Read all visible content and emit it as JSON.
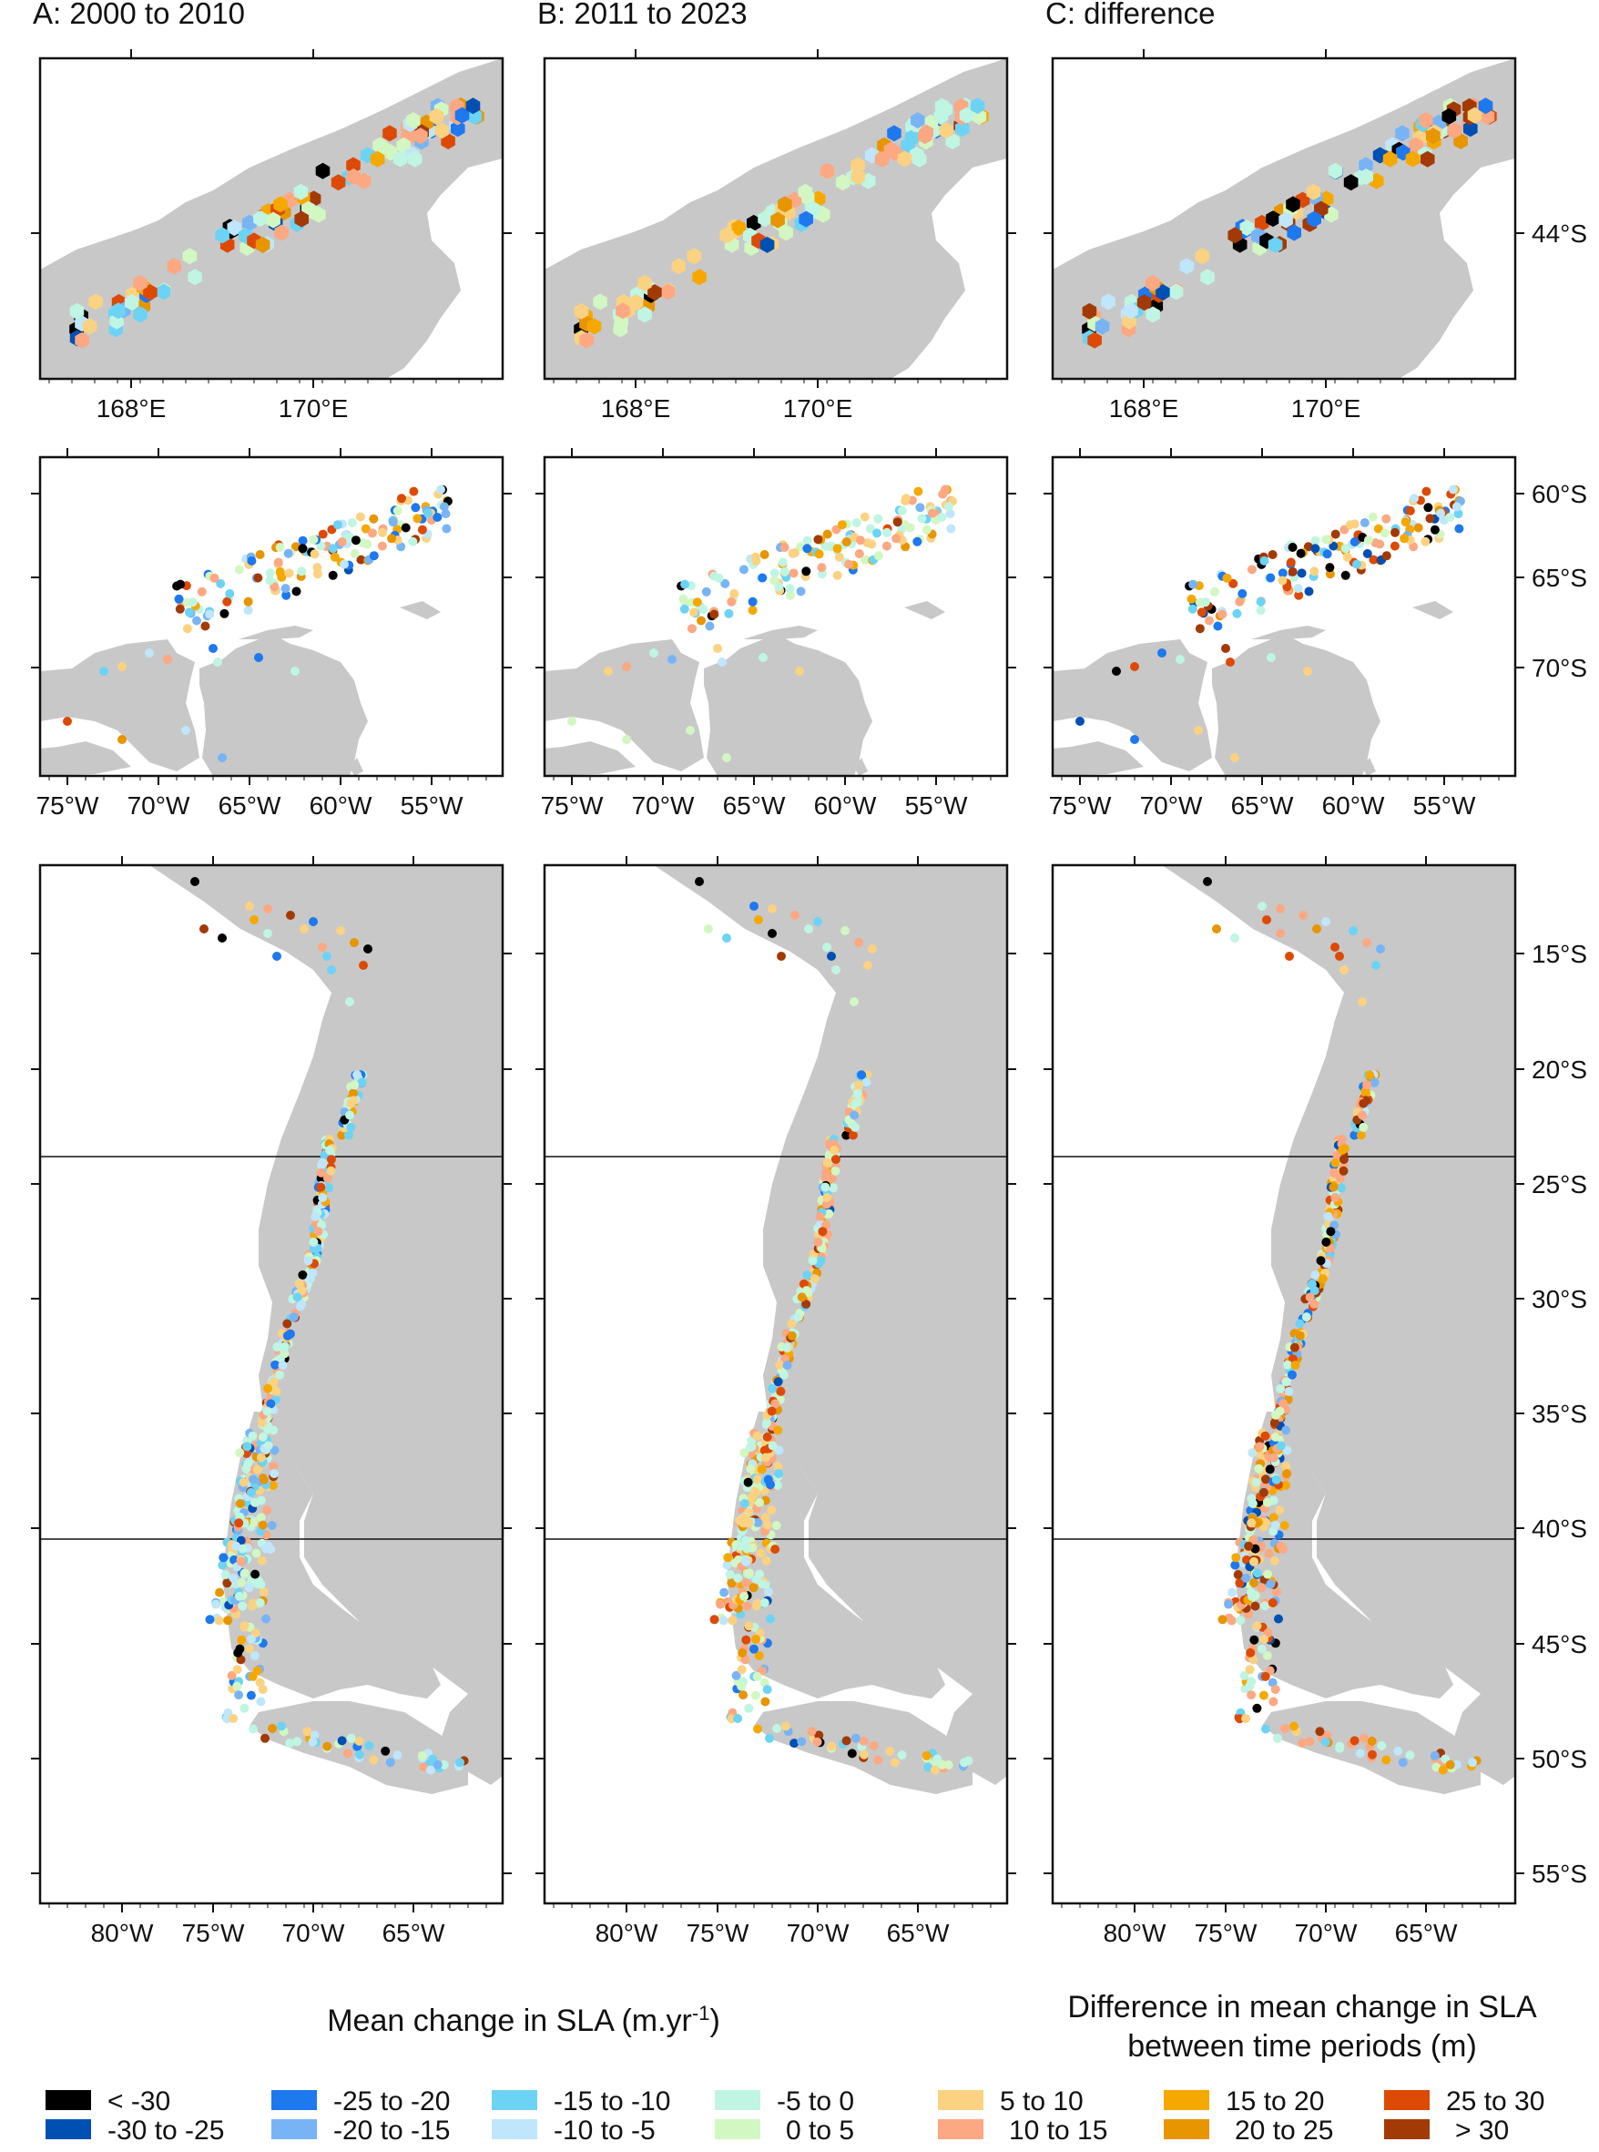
{
  "columns": [
    {
      "title": "A: 2000 to 2010"
    },
    {
      "title": "B: 2011 to 2023"
    },
    {
      "title": "C: difference"
    }
  ],
  "rows": {
    "nz": {
      "x_ticks": [
        "168°E",
        "170°E"
      ],
      "y_ticks": [
        "44°S"
      ]
    },
    "antarctic": {
      "x_ticks": [
        "75°W",
        "70°W",
        "65°W",
        "60°W",
        "55°W"
      ],
      "y_ticks": [
        "60°S",
        "65°S",
        "70°S"
      ]
    },
    "south_america": {
      "x_ticks": [
        "80°W",
        "75°W",
        "70°W",
        "65°W"
      ],
      "y_ticks": [
        "15°S",
        "20°S",
        "25°S",
        "30°S",
        "35°S",
        "40°S",
        "45°S",
        "50°S",
        "55°S"
      ]
    }
  },
  "legend": {
    "title_left": "Mean change in SLA (m.yr",
    "title_left_sup": "-1",
    "title_left_end": ")",
    "title_right_line1": "Difference in mean change in SLA",
    "title_right_line2": "between time periods (m)",
    "items": [
      {
        "label": "< -30",
        "color": "#000000"
      },
      {
        "label": "-30 to -25",
        "color": "#0050b4"
      },
      {
        "label": "-25 to -20",
        "color": "#1e78ee"
      },
      {
        "label": "-20 to -15",
        "color": "#78b4f5"
      },
      {
        "label": "-15 to -10",
        "color": "#6dd3f5"
      },
      {
        "label": "-10 to -5",
        "color": "#bfe6fa"
      },
      {
        "label": "-5 to 0",
        "color": "#bff5e2"
      },
      {
        "label": "0 to 5",
        "color": "#d2f7c2"
      },
      {
        "label": "5 to 10",
        "color": "#fad282"
      },
      {
        "label": "10 to 15",
        "color": "#fba883"
      },
      {
        "label": "15 to 20",
        "color": "#f5a800"
      },
      {
        "label": "20 to 25",
        "color": "#e79500"
      },
      {
        "label": "25 to 30",
        "color": "#dd4a06"
      },
      {
        "label": "> 30",
        "color": "#a33a06"
      }
    ]
  },
  "colors": {
    "land": "#c8c8c8",
    "sea": "#ffffff",
    "frame": "#111111"
  }
}
